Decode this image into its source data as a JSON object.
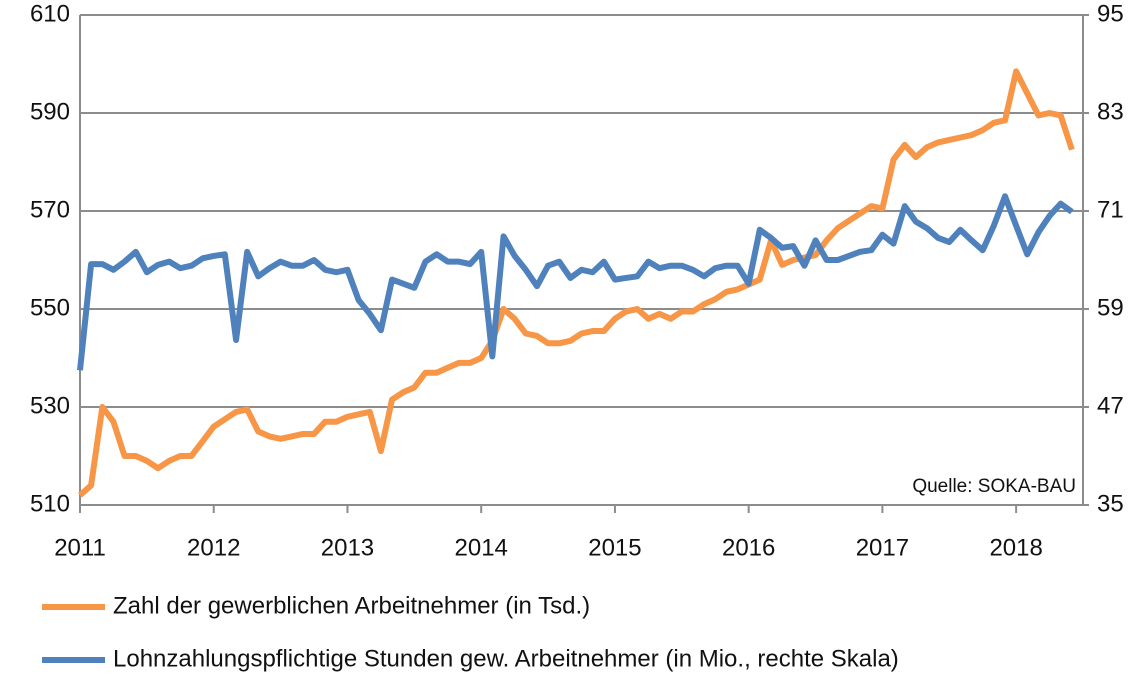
{
  "chart_data": {
    "type": "line",
    "annotation": "Quelle: SOKA-BAU",
    "x": [
      2011,
      2011.083,
      2011.167,
      2011.25,
      2011.333,
      2011.417,
      2011.5,
      2011.583,
      2011.667,
      2011.75,
      2011.833,
      2011.917,
      2012,
      2012.083,
      2012.167,
      2012.25,
      2012.333,
      2012.417,
      2012.5,
      2012.583,
      2012.667,
      2012.75,
      2012.833,
      2012.917,
      2013,
      2013.083,
      2013.167,
      2013.25,
      2013.333,
      2013.417,
      2013.5,
      2013.583,
      2013.667,
      2013.75,
      2013.833,
      2013.917,
      2014,
      2014.083,
      2014.167,
      2014.25,
      2014.333,
      2014.417,
      2014.5,
      2014.583,
      2014.667,
      2014.75,
      2014.833,
      2014.917,
      2015,
      2015.083,
      2015.167,
      2015.25,
      2015.333,
      2015.417,
      2015.5,
      2015.583,
      2015.667,
      2015.75,
      2015.833,
      2015.917,
      2016,
      2016.083,
      2016.167,
      2016.25,
      2016.333,
      2016.417,
      2016.5,
      2016.583,
      2016.667,
      2016.75,
      2016.833,
      2016.917,
      2017,
      2017.083,
      2017.167,
      2017.25,
      2017.333,
      2017.417,
      2017.5,
      2017.583,
      2017.667,
      2017.75,
      2017.833,
      2017.917,
      2018,
      2018.083,
      2018.167,
      2018.25,
      2018.333,
      2018.417
    ],
    "series": [
      {
        "name": "Zahl der gewerblichen Arbeitnehmer (in Tsd.)",
        "color": "#f79646",
        "axis": "y",
        "values": [
          512,
          514,
          530,
          527,
          520,
          520,
          519,
          517.5,
          519,
          520,
          520,
          523,
          526,
          527.5,
          529,
          529.5,
          525,
          524,
          523.5,
          524,
          524.5,
          524.5,
          527,
          527,
          528,
          528.5,
          529,
          521,
          531.5,
          533,
          534,
          537,
          537,
          538,
          539,
          539,
          540,
          543.5,
          550,
          548,
          545,
          544.5,
          543,
          543,
          543.5,
          545,
          545.5,
          545.5,
          548,
          549.5,
          550,
          548,
          549,
          548,
          549.5,
          549.5,
          551,
          552,
          553.5,
          554,
          555,
          556,
          564,
          559,
          560,
          560.5,
          561,
          564,
          566.5,
          568,
          569.5,
          571,
          570.5,
          580.5,
          583.5,
          581,
          583,
          584,
          584.5,
          585,
          585.5,
          586.5,
          588,
          588.5,
          598.5,
          594,
          589.5,
          590,
          589.5,
          582.5
        ]
      },
      {
        "name": "Lohnzahlungspflichtige Stunden gew. Arbeitnehmer (in Mio.,  rechte Skala)",
        "color": "#4f81bd",
        "axis": "y2",
        "values": [
          51.5,
          64.5,
          64.5,
          63.8,
          64.8,
          66,
          63.5,
          64.4,
          64.8,
          64,
          64.3,
          65.2,
          65.5,
          65.7,
          55.2,
          66,
          63,
          64,
          64.8,
          64.3,
          64.3,
          65,
          63.8,
          63.5,
          63.8,
          60.1,
          58.4,
          56.4,
          62.6,
          62.1,
          61.6,
          64.8,
          65.7,
          64.8,
          64.8,
          64.5,
          66,
          53.2,
          67.9,
          65.5,
          63.8,
          61.8,
          64.3,
          64.8,
          62.8,
          63.8,
          63.5,
          64.8,
          62.6,
          62.8,
          63,
          64.8,
          64,
          64.3,
          64.3,
          63.8,
          63,
          64,
          64.3,
          64.3,
          62.1,
          68.7,
          67.7,
          66.5,
          66.7,
          64.3,
          67.4,
          65,
          65,
          65.5,
          66,
          66.2,
          68.1,
          67,
          71.6,
          69.7,
          68.9,
          67.7,
          67.2,
          68.7,
          67.4,
          66.2,
          69.2,
          72.8,
          69.2,
          65.7,
          68.4,
          70.4,
          71.9,
          70.9
        ]
      }
    ],
    "xlim": [
      2011,
      2018.5
    ],
    "xticks": [
      2011,
      2012,
      2013,
      2014,
      2015,
      2016,
      2017,
      2018
    ],
    "ylim": [
      510,
      610
    ],
    "yticks": [
      510,
      530,
      550,
      570,
      590,
      610
    ],
    "y2lim": [
      35,
      95
    ],
    "y2ticks": [
      35,
      47,
      59,
      71,
      83,
      95
    ],
    "grid": true,
    "legend": "bottom"
  }
}
